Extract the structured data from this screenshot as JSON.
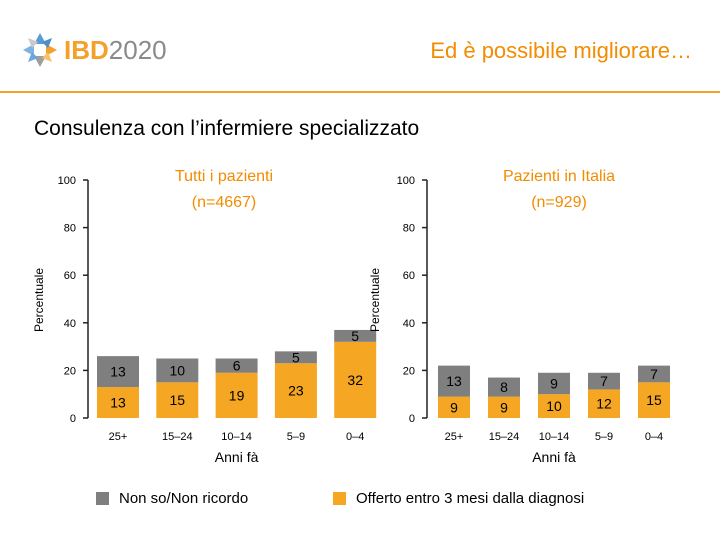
{
  "header": {
    "logo": {
      "brand": "IBD",
      "year": "2020"
    },
    "title": "Ed è possibile migliorare…"
  },
  "section_title": "Consulenza con l’infermiere specializzato",
  "colors": {
    "grey": "#7f7f7f",
    "orange": "#f5a623",
    "accent": "#f28c00"
  },
  "chart_data": [
    {
      "type": "bar",
      "stacked": true,
      "title_line1": "Tutti i pazienti",
      "title_line2": "(n=4667)",
      "ylabel": "Percentuale",
      "xlabel": "Anni fà",
      "ylim": [
        0,
        100
      ],
      "yticks": [
        "0",
        "20",
        "40",
        "60",
        "80",
        "100"
      ],
      "categories": [
        "25+",
        "15–24",
        "10–14",
        "5–9",
        "0–4"
      ],
      "series": [
        {
          "name": "Offerto entro 3 mesi dalla diagnosi",
          "values": [
            13,
            15,
            19,
            23,
            32
          ],
          "labels": [
            "13",
            "15",
            "19",
            "23",
            "32"
          ]
        },
        {
          "name": "Non so/Non ricordo",
          "values": [
            13,
            10,
            6,
            5,
            5
          ],
          "labels": [
            "13",
            "10",
            "6",
            "5",
            "5"
          ]
        }
      ]
    },
    {
      "type": "bar",
      "stacked": true,
      "title_line1": "Pazienti in Italia",
      "title_line2": "(n=929)",
      "ylabel": "Percentuale",
      "xlabel": "Anni fà",
      "ylim": [
        0,
        100
      ],
      "yticks": [
        "0",
        "20",
        "40",
        "60",
        "80",
        "100"
      ],
      "categories": [
        "25+",
        "15–24",
        "10–14",
        "5–9",
        "0–4"
      ],
      "series": [
        {
          "name": "Offerto entro 3 mesi dalla diagnosi",
          "values": [
            9,
            9,
            10,
            12,
            15
          ],
          "labels": [
            "9",
            "9",
            "10",
            "12",
            "15"
          ]
        },
        {
          "name": "Non so/Non ricordo",
          "values": [
            13,
            8,
            9,
            7,
            7
          ],
          "labels": [
            "13",
            "8",
            "9",
            "7",
            "7"
          ]
        }
      ]
    }
  ],
  "legend": {
    "grey_label": "Non so/Non ricordo",
    "orange_label": "Offerto entro 3 mesi dalla diagnosi"
  }
}
